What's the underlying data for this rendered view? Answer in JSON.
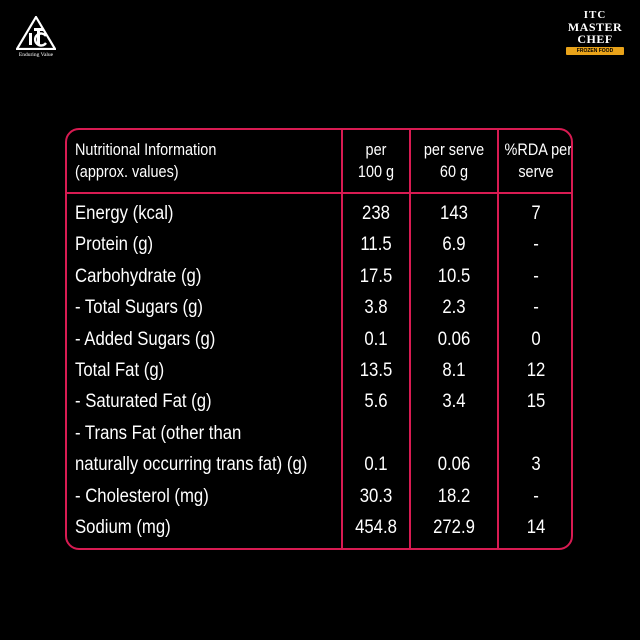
{
  "brand": {
    "itc_tagline": "Enduring Value",
    "master_chef": {
      "line1": "ITC",
      "line2": "MASTER",
      "line3": "CHEF",
      "band": "FROZEN FOOD"
    }
  },
  "table": {
    "headers": {
      "name": [
        "Nutritional Information",
        "(approx. values)"
      ],
      "per100": [
        "per",
        "100 g"
      ],
      "perserve": [
        "per serve",
        "60 g"
      ],
      "rda": [
        "%RDA per",
        "serve"
      ]
    },
    "rows": [
      {
        "label": "Energy (kcal)",
        "per100": "238",
        "perserve": "143",
        "rda": "7"
      },
      {
        "label": "Protein (g)",
        "per100": "11.5",
        "perserve": "6.9",
        "rda": "-"
      },
      {
        "label": "Carbohydrate (g)",
        "per100": "17.5",
        "perserve": "10.5",
        "rda": "-"
      },
      {
        "label": "- Total Sugars (g)",
        "per100": "3.8",
        "perserve": "2.3",
        "rda": "-"
      },
      {
        "label": "- Added Sugars (g)",
        "per100": "0.1",
        "perserve": "0.06",
        "rda": "0"
      },
      {
        "label": "Total Fat (g)",
        "per100": "13.5",
        "perserve": "8.1",
        "rda": "12"
      },
      {
        "label": " - Saturated Fat (g)",
        "per100": "5.6",
        "perserve": "3.4",
        "rda": "15"
      },
      {
        "label": "- Trans Fat (other than",
        "per100": "",
        "perserve": "",
        "rda": ""
      },
      {
        "label": "naturally occurring trans fat) (g)",
        "per100": "0.1",
        "perserve": "0.06",
        "rda": "3"
      },
      {
        "label": "- Cholesterol (mg)",
        "per100": "30.3",
        "perserve": "18.2",
        "rda": "-"
      },
      {
        "label": "Sodium (mg)",
        "per100": "454.8",
        "perserve": "272.9",
        "rda": "14"
      }
    ]
  },
  "colors": {
    "border": "#d81b52",
    "background": "#000000",
    "text": "#ffffff",
    "band": "#e9a31a"
  }
}
